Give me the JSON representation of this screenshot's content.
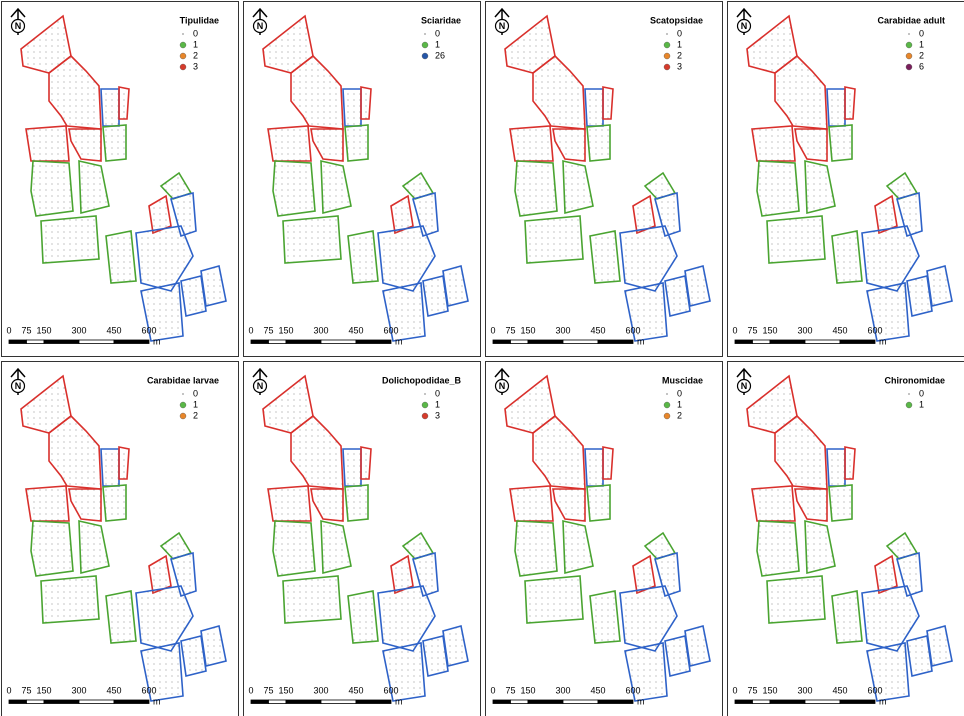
{
  "north": "N",
  "scale": {
    "labels": [
      0,
      75,
      150,
      300,
      450,
      600
    ],
    "unit": "m"
  },
  "panels": [
    {
      "title": "Tipulidae",
      "legend": [
        {
          "label": 0,
          "color": "#9a9a9a"
        },
        {
          "label": 1,
          "color": "#5ab847"
        },
        {
          "label": 2,
          "color": "#e8862a"
        },
        {
          "label": 3,
          "color": "#d63b2b"
        }
      ]
    },
    {
      "title": "Sciaridae",
      "legend": [
        {
          "label": 0,
          "color": "#9a9a9a"
        },
        {
          "label": 1,
          "color": "#5ab847"
        },
        {
          "label": 26,
          "color": "#2556a8"
        }
      ]
    },
    {
      "title": "Scatopsidae",
      "legend": [
        {
          "label": 0,
          "color": "#9a9a9a"
        },
        {
          "label": 1,
          "color": "#5ab847"
        },
        {
          "label": 2,
          "color": "#e8862a"
        },
        {
          "label": 3,
          "color": "#d63b2b"
        }
      ]
    },
    {
      "title": "Carabidae adult",
      "legend": [
        {
          "label": 0,
          "color": "#9a9a9a"
        },
        {
          "label": 1,
          "color": "#5ab847"
        },
        {
          "label": 2,
          "color": "#e8862a"
        },
        {
          "label": 6,
          "color": "#7a1f5c"
        }
      ]
    },
    {
      "title": "Carabidae larvae",
      "legend": [
        {
          "label": 0,
          "color": "#9a9a9a"
        },
        {
          "label": 1,
          "color": "#5ab847"
        },
        {
          "label": 2,
          "color": "#e8862a"
        }
      ]
    },
    {
      "title": "Dolichopodidae_B",
      "legend": [
        {
          "label": 0,
          "color": "#9a9a9a"
        },
        {
          "label": 1,
          "color": "#5ab847"
        },
        {
          "label": 3,
          "color": "#d63b2b"
        }
      ]
    },
    {
      "title": "Muscidae",
      "legend": [
        {
          "label": 0,
          "color": "#9a9a9a"
        },
        {
          "label": 1,
          "color": "#5ab847"
        },
        {
          "label": 2,
          "color": "#e8862a"
        }
      ]
    },
    {
      "title": "Chironomidae",
      "legend": [
        {
          "label": 0,
          "color": "#9a9a9a"
        },
        {
          "label": 1,
          "color": "#5ab847"
        }
      ]
    }
  ]
}
